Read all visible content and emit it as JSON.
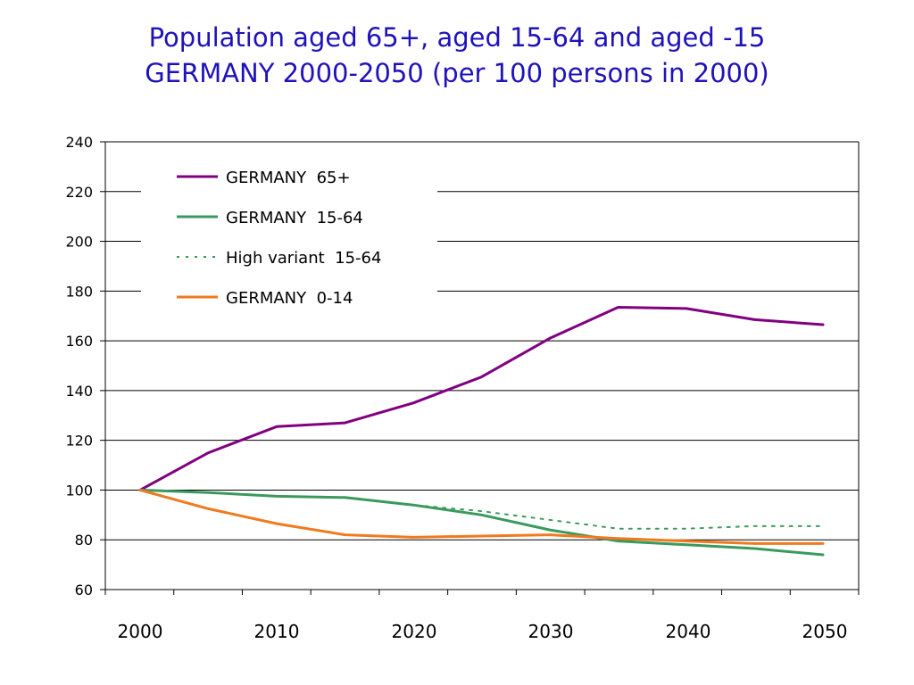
{
  "title": {
    "line1": "Population aged 65+, aged 15-64 and aged -15",
    "line2": "GERMANY 2000-2050 (per 100 persons in 2000)"
  },
  "colors": {
    "title": "#1f12b8",
    "germany_65_plus": "#800080",
    "germany_15_64": "#3a9a5e",
    "high_variant_15_64": "#3a9a5e",
    "germany_0_14": "#f07a1e",
    "grid": "#000000"
  },
  "chart_data": {
    "type": "line",
    "title": "Population aged 65+, aged 15-64 and aged -15 GERMANY 2000-2050 (per 100 persons in 2000)",
    "xlabel": "",
    "ylabel": "",
    "ylim": [
      60,
      240
    ],
    "yticks": [
      60,
      80,
      100,
      120,
      140,
      160,
      180,
      200,
      220,
      240
    ],
    "xlim": [
      2000,
      2050
    ],
    "xtick_labels": [
      "2000",
      "2010",
      "2020",
      "2030",
      "2040",
      "2050"
    ],
    "x": [
      2000,
      2005,
      2010,
      2015,
      2020,
      2025,
      2030,
      2035,
      2040,
      2045,
      2050
    ],
    "grid": "horizontal",
    "legend_position": "top-left",
    "series": [
      {
        "name": "GERMANY  65+",
        "style": "solid",
        "color": "#800080",
        "values": [
          100,
          115,
          125.5,
          127,
          135,
          145.5,
          161,
          173.5,
          173,
          168.5,
          166.5
        ]
      },
      {
        "name": "GERMANY  15-64",
        "style": "solid",
        "color": "#3a9a5e",
        "values": [
          100,
          99,
          97.5,
          97,
          94,
          90,
          84,
          79.5,
          78,
          76.5,
          74
        ]
      },
      {
        "name": "High variant  15-64",
        "style": "dotted",
        "color": "#3a9a5e",
        "values": [
          100,
          99,
          97.5,
          97,
          94,
          91.5,
          88,
          84.5,
          84.5,
          85.5,
          85.5
        ]
      },
      {
        "name": "GERMANY  0-14",
        "style": "solid",
        "color": "#f07a1e",
        "values": [
          100,
          92.5,
          86.5,
          82,
          81,
          81.5,
          82,
          80.5,
          79.5,
          78.5,
          78.5
        ]
      }
    ]
  }
}
